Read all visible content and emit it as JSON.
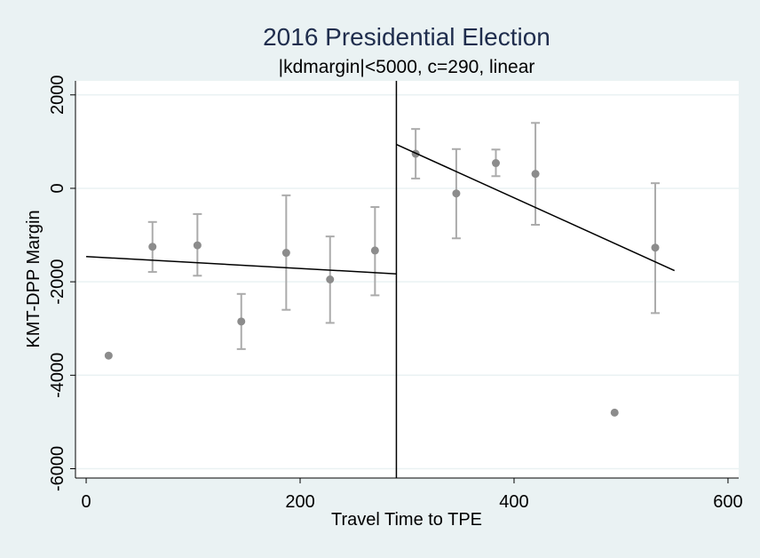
{
  "chart_data": {
    "type": "scatter",
    "title": "2016 Presidential Election",
    "subtitle": "|kdmargin|<5000, c=290, linear",
    "xlabel": "Travel Time to TPE",
    "ylabel": "KMT-DPP Margin",
    "xlim": [
      -10,
      610
    ],
    "ylim": [
      -6200,
      2300
    ],
    "xticks": [
      0,
      200,
      400,
      600
    ],
    "yticks": [
      -6000,
      -4000,
      -2000,
      0,
      2000
    ],
    "cutoff": 290,
    "grid": true,
    "legend": "none",
    "colors": {
      "background": "#eaf2f3",
      "plot_area": "#ffffff",
      "title": "#1f2d4d",
      "points": "#8c8c8c",
      "error_bars": "#ababab",
      "fit_line": "#000000",
      "gridline": "#eaf2f3"
    },
    "points": [
      {
        "x": 21,
        "y": -3580,
        "ci": null
      },
      {
        "x": 62,
        "y": -1250,
        "ci": [
          -1790,
          -720
        ]
      },
      {
        "x": 104,
        "y": -1220,
        "ci": [
          -1870,
          -550
        ]
      },
      {
        "x": 145,
        "y": -2850,
        "ci": [
          -3440,
          -2260
        ]
      },
      {
        "x": 187,
        "y": -1380,
        "ci": [
          -2600,
          -150
        ]
      },
      {
        "x": 228,
        "y": -1950,
        "ci": [
          -2880,
          -1030
        ]
      },
      {
        "x": 270,
        "y": -1330,
        "ci": [
          -2290,
          -400
        ]
      },
      {
        "x": 308,
        "y": 740,
        "ci": [
          210,
          1270
        ]
      },
      {
        "x": 346,
        "y": -110,
        "ci": [
          -1070,
          840
        ]
      },
      {
        "x": 383,
        "y": 540,
        "ci": [
          260,
          830
        ]
      },
      {
        "x": 420,
        "y": 310,
        "ci": [
          -780,
          1400
        ]
      },
      {
        "x": 494,
        "y": -4800,
        "ci": null
      },
      {
        "x": 532,
        "y": -1270,
        "ci": [
          -2670,
          110
        ]
      }
    ],
    "fit_lines": [
      {
        "x": [
          0,
          290
        ],
        "y": [
          -1460,
          -1830
        ]
      },
      {
        "x": [
          290,
          550
        ],
        "y": [
          940,
          -1760
        ]
      }
    ]
  }
}
